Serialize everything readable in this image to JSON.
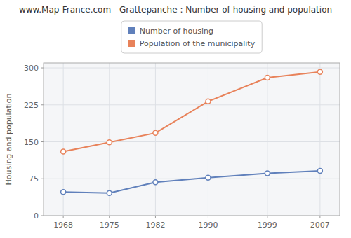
{
  "chart_data": {
    "type": "line",
    "title": "www.Map-France.com - Grattepanche : Number of housing and population",
    "y_label": "Housing and population",
    "x": [
      1968,
      1975,
      1982,
      1990,
      1999,
      2007
    ],
    "series": [
      {
        "name": "Number of housing",
        "color": "#6080bb",
        "values": [
          48,
          46,
          68,
          77,
          86,
          91
        ]
      },
      {
        "name": "Population of the municipality",
        "color": "#e8825a",
        "values": [
          130,
          149,
          168,
          232,
          280,
          292
        ]
      }
    ],
    "xlim": [
      1965,
      2010
    ],
    "xticks": [
      1968,
      1975,
      1982,
      1990,
      1999,
      2007
    ],
    "ylim": [
      0,
      310
    ],
    "yticks": [
      0,
      75,
      150,
      225,
      300
    ],
    "grid": true,
    "legend": "top",
    "marker": "circle"
  }
}
